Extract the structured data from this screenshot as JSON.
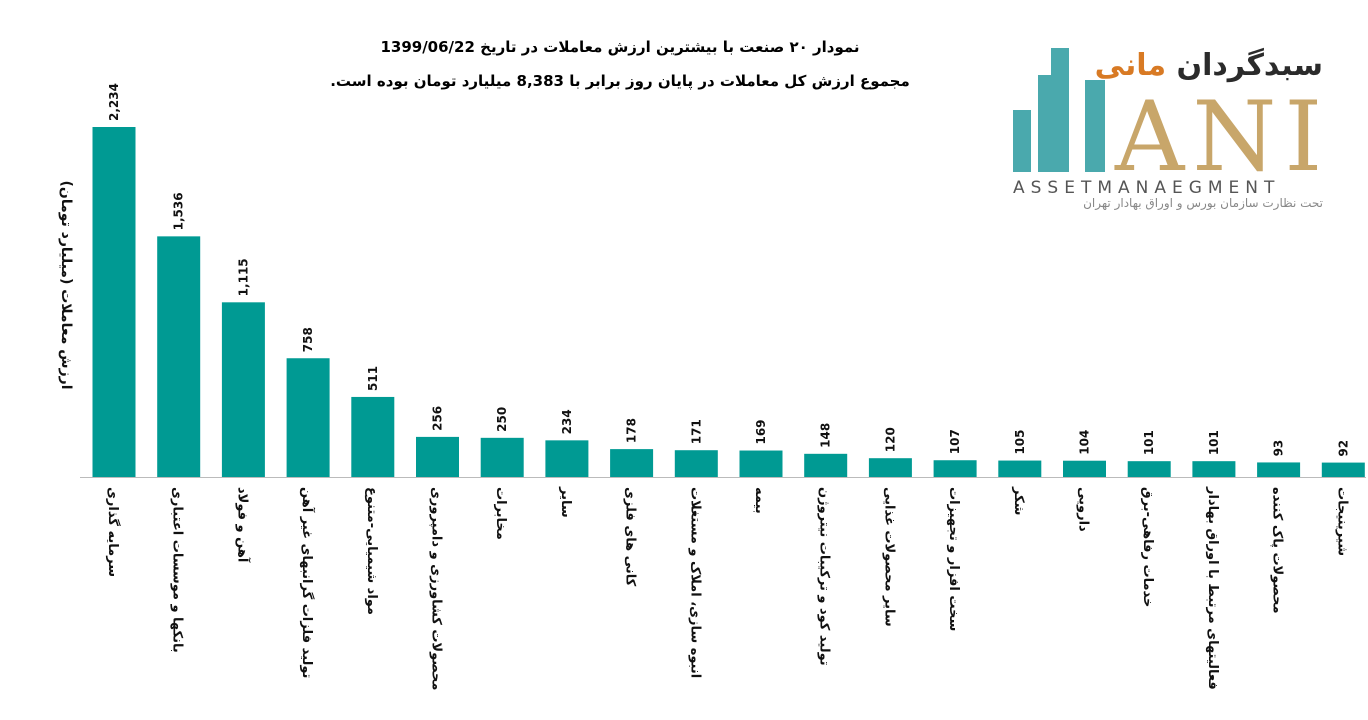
{
  "title": {
    "line1": "نمودار ۲۰ صنعت با بیشترین ارزش معاملات در تاریخ 1399/06/22",
    "line2": "مجموع ارزش کل معاملات در پایان روز برابر با 8,383 میلیارد تومان بوده است."
  },
  "logo": {
    "fa_text": "سبدگردان",
    "fa_accent": "مانی",
    "en_text": "ANI",
    "sub_en": "ASSETMANAEGMENT",
    "sub_fa": "تحت نظارت سازمان بورس و اوراق بهادار تهران",
    "colors": {
      "teal": "#4aa9ad",
      "gold": "#c8a66a",
      "orange": "#d87a24"
    }
  },
  "chart_data": {
    "type": "bar",
    "ylabel": "ارزش معاملات (میلیارد تومان)",
    "bar_color": "#009a93",
    "ylim": [
      0,
      2234
    ],
    "categories": [
      "سرمایه گذاری",
      "بانکها و موسسات اعتباری",
      "آهن و فولاد",
      "تولید فلزات گرانبهای غیر آهن",
      "مواد شیمیایی-متنوع",
      "محصولات کشاورزی و دامپروری",
      "مخابرات",
      "سایر",
      "کانی های فلزی",
      "انبوه سازی، املاک و مستغلات",
      "بیمه",
      "تولید کود و ترکیبات نیتروژن",
      "سایر محصولات غذایی",
      "سخت افزار و تجهیزات",
      "شکر",
      "دارویی",
      "خدمات رفاهی-برق",
      "فعالیتهای مرتبط با اوراق بهادار",
      "محصولات پاک کننده",
      "شیرینیجات"
    ],
    "values": [
      2234,
      1536,
      1115,
      758,
      511,
      256,
      250,
      234,
      178,
      171,
      169,
      148,
      120,
      107,
      105,
      104,
      101,
      101,
      93,
      92
    ],
    "value_labels": [
      "2,234",
      "1,536",
      "1,115",
      "758",
      "511",
      "256",
      "250",
      "234",
      "178",
      "171",
      "169",
      "148",
      "120",
      "107",
      "105",
      "104",
      "101",
      "101",
      "93",
      "92"
    ]
  }
}
